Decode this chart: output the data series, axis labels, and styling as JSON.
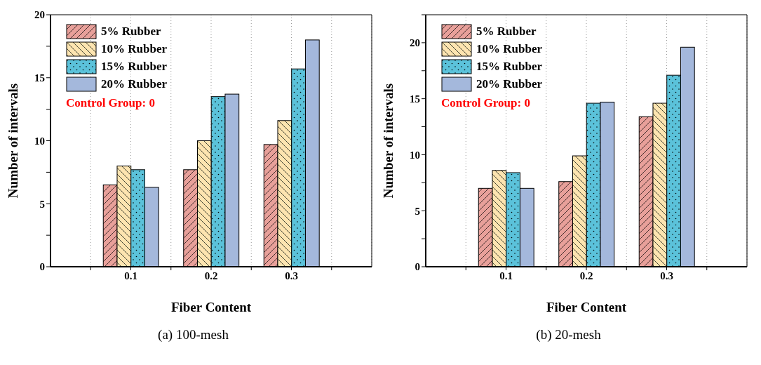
{
  "chart_data": [
    {
      "type": "bar",
      "title": "(a) 100-mesh",
      "xlabel": "Fiber Content",
      "ylabel": "Number of intervals",
      "x": [
        0.1,
        0.2,
        0.3
      ],
      "xlim": [
        0,
        0.4
      ],
      "xticks": [
        {
          "value": 0.05,
          "label": null
        },
        0.1,
        {
          "value": 0.15,
          "label": null
        },
        0.2,
        {
          "value": 0.25,
          "label": null
        },
        0.3,
        {
          "value": 0.35,
          "label": null
        }
      ],
      "ylim": [
        0,
        20
      ],
      "yticks": [
        0,
        {
          "value": 2.5,
          "label": null
        },
        5,
        {
          "value": 7.5,
          "label": null
        },
        10,
        {
          "value": 12.5,
          "label": null
        },
        15,
        {
          "value": 17.5,
          "label": null
        },
        20
      ],
      "grid": "x",
      "legend": "top left",
      "annotations": [
        "Control Group: 0"
      ],
      "series": [
        {
          "name": "5% Rubber",
          "color": "#e8a09a",
          "values": [
            6.5,
            7.7,
            9.7
          ]
        },
        {
          "name": "10% Rubber",
          "color": "#fde4b0",
          "values": [
            8.0,
            10.0,
            11.6
          ]
        },
        {
          "name": "15% Rubber",
          "color": "#5bc2da",
          "values": [
            7.7,
            13.5,
            15.7
          ]
        },
        {
          "name": "20% Rubber",
          "color": "#a4b8dc",
          "values": [
            6.3,
            13.7,
            18.0
          ]
        }
      ]
    },
    {
      "type": "bar",
      "title": "(b) 20-mesh",
      "xlabel": "Fiber Content",
      "ylabel": "Number of intervals",
      "x": [
        0.1,
        0.2,
        0.3
      ],
      "xlim": [
        0,
        0.4
      ],
      "xticks": [
        {
          "value": 0.05,
          "label": null
        },
        0.1,
        {
          "value": 0.15,
          "label": null
        },
        0.2,
        {
          "value": 0.25,
          "label": null
        },
        0.3,
        {
          "value": 0.35,
          "label": null
        }
      ],
      "ylim": [
        0,
        22.5
      ],
      "yticks": [
        0,
        {
          "value": 2.5,
          "label": null
        },
        5,
        {
          "value": 7.5,
          "label": null
        },
        10,
        {
          "value": 12.5,
          "label": null
        },
        15,
        {
          "value": 17.5,
          "label": null
        },
        20,
        {
          "value": 22.5,
          "label": null
        }
      ],
      "grid": "x",
      "legend": "top left",
      "annotations": [
        "Control Group: 0"
      ],
      "series": [
        {
          "name": "5% Rubber",
          "color": "#e8a09a",
          "values": [
            7.0,
            7.6,
            13.4
          ]
        },
        {
          "name": "10% Rubber",
          "color": "#fde4b0",
          "values": [
            8.6,
            9.9,
            14.6
          ]
        },
        {
          "name": "15% Rubber",
          "color": "#5bc2da",
          "values": [
            8.4,
            14.6,
            17.1
          ]
        },
        {
          "name": "20% Rubber",
          "color": "#a4b8dc",
          "values": [
            7.0,
            14.7,
            19.6
          ]
        }
      ]
    }
  ]
}
